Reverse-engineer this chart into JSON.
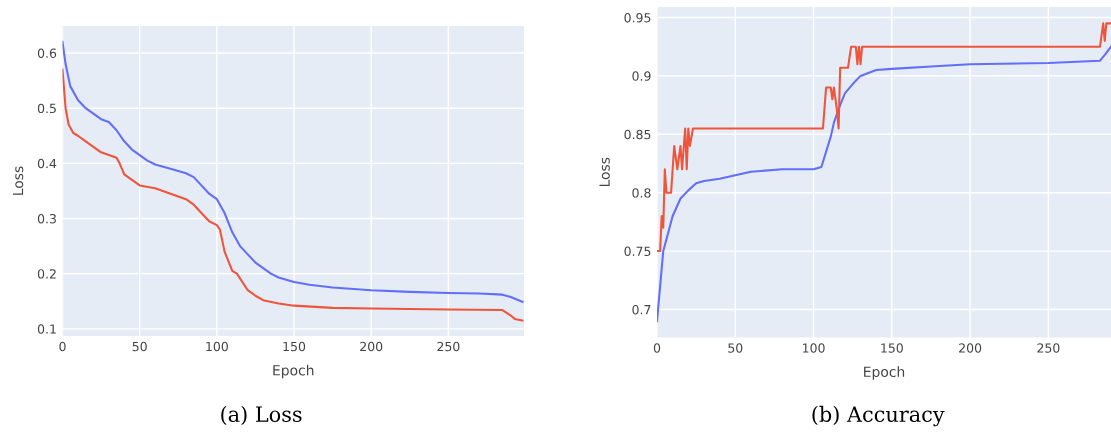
{
  "chart_data": [
    {
      "type": "line",
      "xlabel": "Epoch",
      "ylabel": "Loss",
      "xlim": [
        0,
        299
      ],
      "ylim": [
        0.087,
        0.649
      ],
      "xticks": [
        0,
        50,
        100,
        150,
        200,
        250
      ],
      "yticks": [
        0.1,
        0.2,
        0.3,
        0.4,
        0.5,
        0.6
      ],
      "grid": true,
      "marker": "none",
      "line_style": "solid",
      "annotations": [
        "(a) Loss"
      ],
      "series": [
        {
          "color": "#636efa",
          "x": [
            0,
            2,
            5,
            10,
            15,
            20,
            25,
            30,
            35,
            40,
            45,
            50,
            55,
            60,
            70,
            80,
            85,
            90,
            95,
            100,
            105,
            110,
            115,
            120,
            125,
            130,
            135,
            140,
            150,
            160,
            175,
            200,
            225,
            250,
            270,
            285,
            290,
            298
          ],
          "values": [
            0.62,
            0.58,
            0.54,
            0.515,
            0.5,
            0.49,
            0.48,
            0.475,
            0.46,
            0.44,
            0.425,
            0.415,
            0.405,
            0.398,
            0.39,
            0.382,
            0.375,
            0.36,
            0.345,
            0.335,
            0.31,
            0.275,
            0.25,
            0.235,
            0.22,
            0.21,
            0.2,
            0.193,
            0.185,
            0.18,
            0.175,
            0.17,
            0.167,
            0.165,
            0.164,
            0.162,
            0.158,
            0.149
          ]
        },
        {
          "color": "#ef553b",
          "x": [
            0,
            2,
            4,
            7,
            10,
            15,
            20,
            25,
            30,
            35,
            37,
            40,
            45,
            50,
            60,
            70,
            80,
            85,
            90,
            95,
            100,
            102,
            105,
            110,
            113,
            120,
            125,
            130,
            140,
            150,
            175,
            200,
            250,
            285,
            290,
            293,
            298
          ],
          "values": [
            0.57,
            0.5,
            0.47,
            0.455,
            0.45,
            0.44,
            0.43,
            0.42,
            0.415,
            0.41,
            0.4,
            0.38,
            0.37,
            0.36,
            0.355,
            0.345,
            0.335,
            0.325,
            0.31,
            0.295,
            0.288,
            0.28,
            0.24,
            0.205,
            0.2,
            0.17,
            0.16,
            0.152,
            0.146,
            0.142,
            0.138,
            0.137,
            0.135,
            0.134,
            0.125,
            0.118,
            0.115
          ]
        }
      ]
    },
    {
      "type": "line",
      "xlabel": "Epoch",
      "ylabel": "Loss",
      "xlim": [
        0,
        290
      ],
      "ylim": [
        0.676,
        0.959
      ],
      "xticks": [
        0,
        50,
        100,
        150,
        200,
        250
      ],
      "yticks": [
        0.7,
        0.75,
        0.8,
        0.85,
        0.9,
        0.95
      ],
      "grid": true,
      "marker": "none",
      "line_style": "solid",
      "annotations": [
        "(b) Accuracy"
      ],
      "series": [
        {
          "color": "#636efa",
          "x": [
            0,
            2,
            4,
            6,
            10,
            15,
            20,
            25,
            30,
            40,
            50,
            60,
            80,
            100,
            105,
            108,
            111,
            113,
            117,
            120,
            125,
            130,
            140,
            150,
            175,
            200,
            250,
            283,
            286,
            290
          ],
          "values": [
            0.69,
            0.72,
            0.75,
            0.76,
            0.78,
            0.795,
            0.802,
            0.808,
            0.81,
            0.812,
            0.815,
            0.818,
            0.82,
            0.82,
            0.822,
            0.835,
            0.848,
            0.86,
            0.875,
            0.885,
            0.893,
            0.9,
            0.905,
            0.906,
            0.908,
            0.91,
            0.911,
            0.913,
            0.918,
            0.925
          ]
        },
        {
          "color": "#ef553b",
          "x": [
            0,
            2,
            3,
            4,
            5,
            6,
            9,
            11,
            13,
            15,
            16,
            18,
            19,
            20,
            21,
            23,
            106,
            108,
            111,
            112,
            113,
            115,
            116,
            117,
            122,
            124,
            127,
            128,
            129,
            130,
            131,
            283,
            285,
            286,
            287,
            290
          ],
          "values": [
            0.75,
            0.75,
            0.78,
            0.77,
            0.82,
            0.8,
            0.8,
            0.84,
            0.82,
            0.84,
            0.82,
            0.855,
            0.82,
            0.855,
            0.84,
            0.855,
            0.855,
            0.89,
            0.89,
            0.88,
            0.89,
            0.87,
            0.855,
            0.907,
            0.907,
            0.925,
            0.925,
            0.91,
            0.925,
            0.91,
            0.925,
            0.925,
            0.945,
            0.93,
            0.945,
            0.945
          ]
        }
      ]
    }
  ]
}
